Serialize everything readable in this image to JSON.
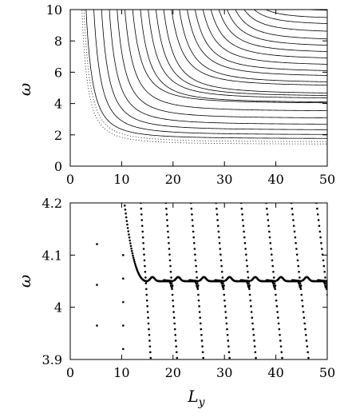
{
  "chart_data": [
    {
      "type": "line",
      "title": "",
      "xlabel": "",
      "ylabel": "ω",
      "xlim": [
        0,
        50
      ],
      "ylim": [
        0,
        10
      ],
      "x_ticks": [
        0,
        10,
        20,
        30,
        40,
        50
      ],
      "y_ticks": [
        0,
        2,
        4,
        6,
        8,
        10
      ],
      "grid": false,
      "legend": "none",
      "series_note_values": {
        "asymptotes": [
          1.4,
          1.55,
          1.75,
          2.0,
          2.3,
          2.65,
          3.05,
          3.5,
          4.0,
          4.05,
          4.3,
          4.45,
          4.6,
          5.1,
          5.3,
          5.7,
          6.0,
          6.4,
          6.8,
          7.2,
          7.6,
          8.0,
          8.5,
          9.0,
          9.4,
          9.9
        ],
        "start_x": [
          2.2,
          2.6,
          3.0,
          4.5,
          6,
          7.5,
          9,
          10.5,
          12,
          13.5,
          15,
          16.5,
          18,
          19.5,
          21,
          22.5,
          24,
          25.5,
          27,
          28.5,
          30,
          31.5,
          33,
          34.5,
          36,
          37.5
        ]
      }
    },
    {
      "type": "scatter",
      "title": "",
      "xlabel": "L_y",
      "ylabel": "ω",
      "xlim": [
        0,
        50
      ],
      "ylim": [
        3.9,
        4.2
      ],
      "x_ticks": [
        0,
        10,
        20,
        30,
        40,
        50
      ],
      "y_ticks": [
        "3.9",
        "4",
        "4.1",
        "4.2"
      ],
      "grid": false,
      "legend": "none",
      "plateau_value": 4.05,
      "branch_centers": [
        15,
        20,
        25,
        30,
        35,
        40,
        45,
        50
      ],
      "isolated_points": [
        {
          "x": 5.2,
          "y": 3.965
        },
        {
          "x": 5.2,
          "y": 4.043
        },
        {
          "x": 5.2,
          "y": 4.121
        },
        {
          "x": 10.3,
          "y": 3.92
        },
        {
          "x": 10.3,
          "y": 3.965
        },
        {
          "x": 10.3,
          "y": 4.01
        },
        {
          "x": 10.3,
          "y": 4.055
        },
        {
          "x": 10.3,
          "y": 4.1
        }
      ]
    }
  ],
  "labels": {
    "top_ylabel": "ω",
    "bottom_ylabel": "ω",
    "bottom_xlabel_main": "L",
    "bottom_xlabel_sub": "y"
  }
}
